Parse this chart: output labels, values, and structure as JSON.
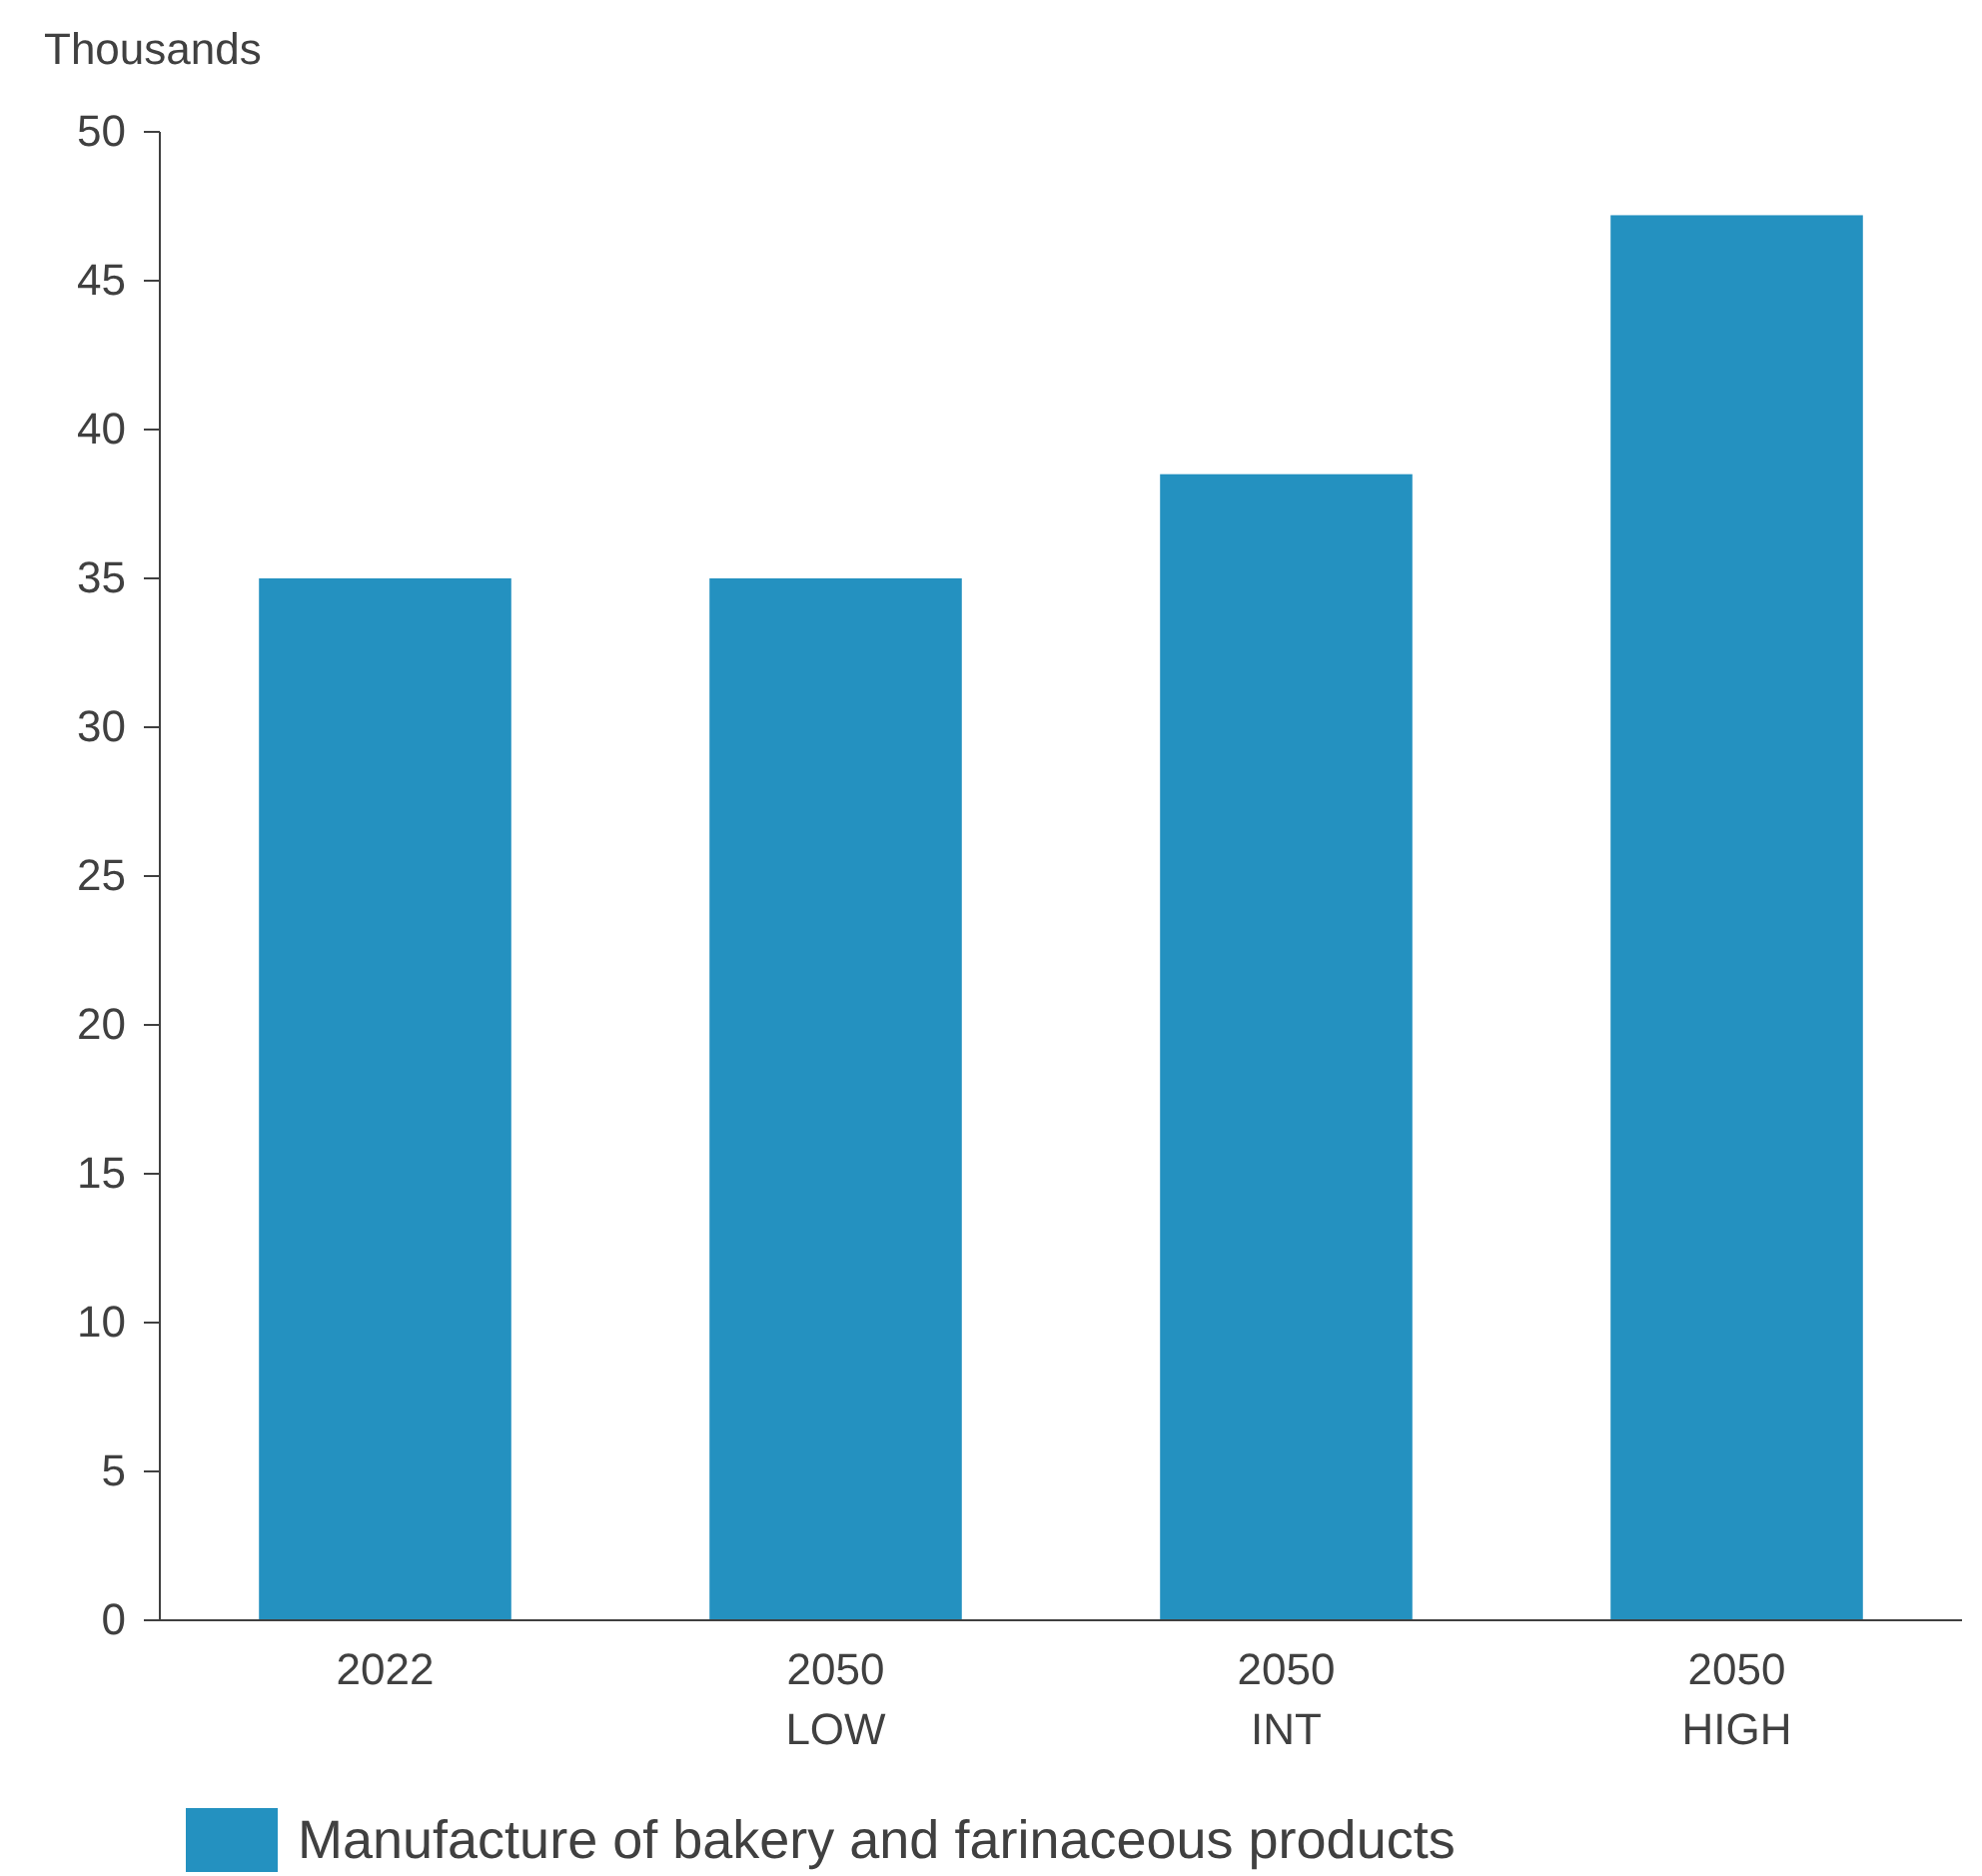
{
  "chart_data": {
    "type": "bar",
    "ylabel": "Thousands",
    "categories": [
      "2022",
      "2050\nLOW",
      "2050\nINT",
      "2050\nHIGH"
    ],
    "series": [
      {
        "name": "Manufacture of bakery and farinaceous products",
        "color": "#2491c0",
        "values": [
          35,
          35,
          38.5,
          47.2
        ]
      }
    ],
    "ylim": [
      0,
      50
    ],
    "yticks": [
      0,
      5,
      10,
      15,
      20,
      25,
      30,
      35,
      40,
      45,
      50
    ],
    "grid": false,
    "legend": "bottom"
  }
}
